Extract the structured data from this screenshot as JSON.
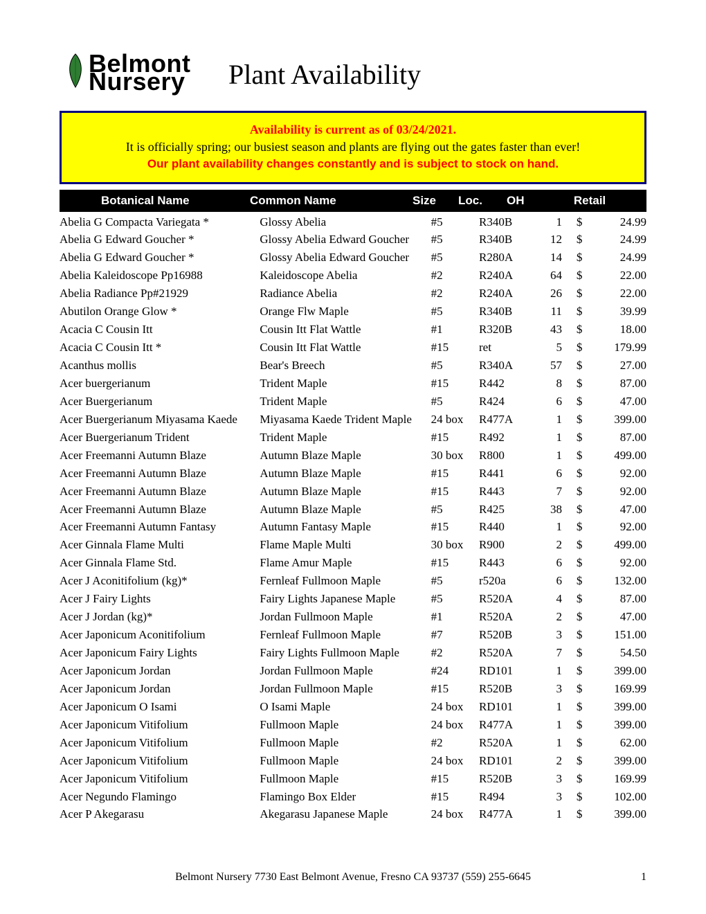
{
  "logo": {
    "line1": "Belmont",
    "line2": "Nursery",
    "leaf_color": "#2e7d32",
    "leaf_stroke": "#000000"
  },
  "title": "Plant Availability",
  "notice": {
    "line1": "Availability is current as of 03/24/2021.",
    "line2": "It is officially spring; our busiest season and plants are flying out the gates faster than ever!",
    "line3": "Our plant availability changes constantly and is subject to stock on hand.",
    "bg_color": "#ffff00",
    "border_color": "#000080",
    "red": "#ff0000"
  },
  "columns": {
    "botanical": "Botanical Name",
    "common": "Common Name",
    "size": "Size",
    "loc": "Loc.",
    "oh": "OH",
    "retail": "Retail"
  },
  "rows": [
    {
      "botanical": "Abelia G Compacta Variegata *",
      "common": "Glossy Abelia",
      "size": "#5",
      "loc": "R340B",
      "oh": "1",
      "cur": "$",
      "retail": "24.99"
    },
    {
      "botanical": "Abelia G Edward Goucher *",
      "common": "Glossy Abelia Edward Goucher",
      "size": "#5",
      "loc": "R340B",
      "oh": "12",
      "cur": "$",
      "retail": "24.99"
    },
    {
      "botanical": "Abelia G Edward Goucher *",
      "common": "Glossy Abelia Edward Goucher",
      "size": "#5",
      "loc": "R280A",
      "oh": "14",
      "cur": "$",
      "retail": "24.99"
    },
    {
      "botanical": "Abelia Kaleidoscope Pp16988",
      "common": "Kaleidoscope Abelia",
      "size": "#2",
      "loc": "R240A",
      "oh": "64",
      "cur": "$",
      "retail": "22.00"
    },
    {
      "botanical": "Abelia Radiance Pp#21929",
      "common": "Radiance Abelia",
      "size": "#2",
      "loc": "R240A",
      "oh": "26",
      "cur": "$",
      "retail": "22.00"
    },
    {
      "botanical": "Abutilon Orange Glow *",
      "common": "Orange Flw Maple",
      "size": "#5",
      "loc": "R340B",
      "oh": "11",
      "cur": "$",
      "retail": "39.99"
    },
    {
      "botanical": "Acacia C Cousin Itt",
      "common": "Cousin Itt Flat Wattle",
      "size": "#1",
      "loc": "R320B",
      "oh": "43",
      "cur": "$",
      "retail": "18.00"
    },
    {
      "botanical": "Acacia C Cousin Itt *",
      "common": "Cousin Itt Flat Wattle",
      "size": "#15",
      "loc": "ret",
      "oh": "5",
      "cur": "$",
      "retail": "179.99"
    },
    {
      "botanical": "Acanthus mollis",
      "common": "Bear's Breech",
      "size": "#5",
      "loc": "R340A",
      "oh": "57",
      "cur": "$",
      "retail": "27.00"
    },
    {
      "botanical": "Acer buergerianum",
      "common": "Trident Maple",
      "size": "#15",
      "loc": "R442",
      "oh": "8",
      "cur": "$",
      "retail": "87.00"
    },
    {
      "botanical": "Acer Buergerianum",
      "common": "Trident Maple",
      "size": "#5",
      "loc": "R424",
      "oh": "6",
      "cur": "$",
      "retail": "47.00"
    },
    {
      "botanical": "Acer Buergerianum Miyasama Kaede",
      "common": "Miyasama Kaede Trident Maple",
      "size": "24 box",
      "loc": "R477A",
      "oh": "1",
      "cur": "$",
      "retail": "399.00"
    },
    {
      "botanical": "Acer Buergerianum Trident",
      "common": "Trident Maple",
      "size": "#15",
      "loc": "R492",
      "oh": "1",
      "cur": "$",
      "retail": "87.00"
    },
    {
      "botanical": "Acer Freemanni Autumn Blaze",
      "common": "Autumn Blaze Maple",
      "size": "30 box",
      "loc": "R800",
      "oh": "1",
      "cur": "$",
      "retail": "499.00"
    },
    {
      "botanical": "Acer Freemanni Autumn Blaze",
      "common": "Autumn Blaze Maple",
      "size": "#15",
      "loc": "R441",
      "oh": "6",
      "cur": "$",
      "retail": "92.00"
    },
    {
      "botanical": "Acer Freemanni Autumn Blaze",
      "common": "Autumn Blaze Maple",
      "size": "#15",
      "loc": "R443",
      "oh": "7",
      "cur": "$",
      "retail": "92.00"
    },
    {
      "botanical": "Acer Freemanni Autumn Blaze",
      "common": "Autumn Blaze Maple",
      "size": "#5",
      "loc": "R425",
      "oh": "38",
      "cur": "$",
      "retail": "47.00"
    },
    {
      "botanical": "Acer Freemanni Autumn Fantasy",
      "common": "Autumn Fantasy Maple",
      "size": "#15",
      "loc": "R440",
      "oh": "1",
      "cur": "$",
      "retail": "92.00"
    },
    {
      "botanical": "Acer Ginnala Flame Multi",
      "common": "Flame Maple Multi",
      "size": "30 box",
      "loc": "R900",
      "oh": "2",
      "cur": "$",
      "retail": "499.00"
    },
    {
      "botanical": "Acer Ginnala Flame Std.",
      "common": "Flame Amur Maple",
      "size": "#15",
      "loc": "R443",
      "oh": "6",
      "cur": "$",
      "retail": "92.00"
    },
    {
      "botanical": "Acer J Aconitifolium (kg)*",
      "common": "Fernleaf Fullmoon Maple",
      "size": "#5",
      "loc": "r520a",
      "oh": "6",
      "cur": "$",
      "retail": "132.00"
    },
    {
      "botanical": "Acer J Fairy Lights",
      "common": "Fairy Lights Japanese Maple",
      "size": "#5",
      "loc": "R520A",
      "oh": "4",
      "cur": "$",
      "retail": "87.00"
    },
    {
      "botanical": "Acer J Jordan (kg)*",
      "common": "Jordan Fullmoon Maple",
      "size": "#1",
      "loc": "R520A",
      "oh": "2",
      "cur": "$",
      "retail": "47.00"
    },
    {
      "botanical": "Acer Japonicum Aconitifolium",
      "common": "Fernleaf Fullmoon Maple",
      "size": "#7",
      "loc": "R520B",
      "oh": "3",
      "cur": "$",
      "retail": "151.00"
    },
    {
      "botanical": "Acer Japonicum Fairy Lights",
      "common": "Fairy Lights Fullmoon Maple",
      "size": "#2",
      "loc": "R520A",
      "oh": "7",
      "cur": "$",
      "retail": "54.50"
    },
    {
      "botanical": "Acer Japonicum Jordan",
      "common": "Jordan Fullmoon Maple",
      "size": "#24",
      "loc": "RD101",
      "oh": "1",
      "cur": "$",
      "retail": "399.00"
    },
    {
      "botanical": "Acer Japonicum Jordan",
      "common": "Jordan Fullmoon Maple",
      "size": "#15",
      "loc": "R520B",
      "oh": "3",
      "cur": "$",
      "retail": "169.99"
    },
    {
      "botanical": "Acer Japonicum O Isami",
      "common": "O Isami Maple",
      "size": "24 box",
      "loc": "RD101",
      "oh": "1",
      "cur": "$",
      "retail": "399.00"
    },
    {
      "botanical": "Acer Japonicum Vitifolium",
      "common": "Fullmoon Maple",
      "size": "24 box",
      "loc": "R477A",
      "oh": "1",
      "cur": "$",
      "retail": "399.00"
    },
    {
      "botanical": "Acer Japonicum Vitifolium",
      "common": "Fullmoon Maple",
      "size": "#2",
      "loc": "R520A",
      "oh": "1",
      "cur": "$",
      "retail": "62.00"
    },
    {
      "botanical": "Acer Japonicum Vitifolium",
      "common": "Fullmoon Maple",
      "size": "24 box",
      "loc": "RD101",
      "oh": "2",
      "cur": "$",
      "retail": "399.00"
    },
    {
      "botanical": "Acer Japonicum Vitifolium",
      "common": "Fullmoon Maple",
      "size": "#15",
      "loc": "R520B",
      "oh": "3",
      "cur": "$",
      "retail": "169.99"
    },
    {
      "botanical": "Acer Negundo Flamingo",
      "common": "Flamingo Box Elder",
      "size": "#15",
      "loc": "R494",
      "oh": "3",
      "cur": "$",
      "retail": "102.00"
    },
    {
      "botanical": "Acer P Akegarasu",
      "common": "Akegarasu Japanese Maple",
      "size": "24 box",
      "loc": "R477A",
      "oh": "1",
      "cur": "$",
      "retail": "399.00"
    }
  ],
  "footer": "Belmont Nursery  7730 East Belmont Avenue, Fresno CA 93737  (559) 255-6645",
  "page_number": "1"
}
